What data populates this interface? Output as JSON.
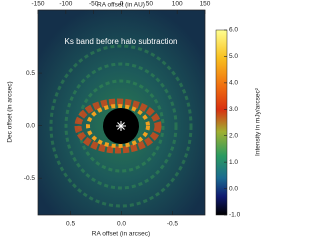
{
  "chart_data": {
    "type": "image",
    "title": "Ks band before halo subtraction",
    "x_label": "RA offset (in arcsec)",
    "x2_label": "RA offset (in AU)",
    "y_label": "Dec offset (in arcsec)",
    "colorbar_label": "Intensity in mJy/arcsec²",
    "xlim": [
      0.82,
      -0.82
    ],
    "xticks": [
      0.5,
      {
        "value": 0,
        "label": "0.0"
      },
      -0.5
    ],
    "x2lim": [
      -150,
      150
    ],
    "x2ticks": [
      -150,
      -100,
      -50,
      0,
      50,
      100,
      150
    ],
    "ylim": [
      -0.85,
      1.1
    ],
    "yticks": [
      0.5,
      {
        "value": 0,
        "label": "0.0"
      },
      -0.5
    ],
    "clim": [
      -1,
      6
    ],
    "cticks": [
      {
        "value": -1,
        "label": "-1.0"
      },
      {
        "value": 0,
        "label": "0.0"
      },
      {
        "value": 1,
        "label": "1.0"
      },
      {
        "value": 2,
        "label": "2.0"
      },
      {
        "value": 3,
        "label": "3.0"
      },
      {
        "value": 4,
        "label": "4.0"
      },
      {
        "value": 5,
        "label": "5.0"
      },
      {
        "value": 6,
        "label": "6.0"
      }
    ]
  }
}
